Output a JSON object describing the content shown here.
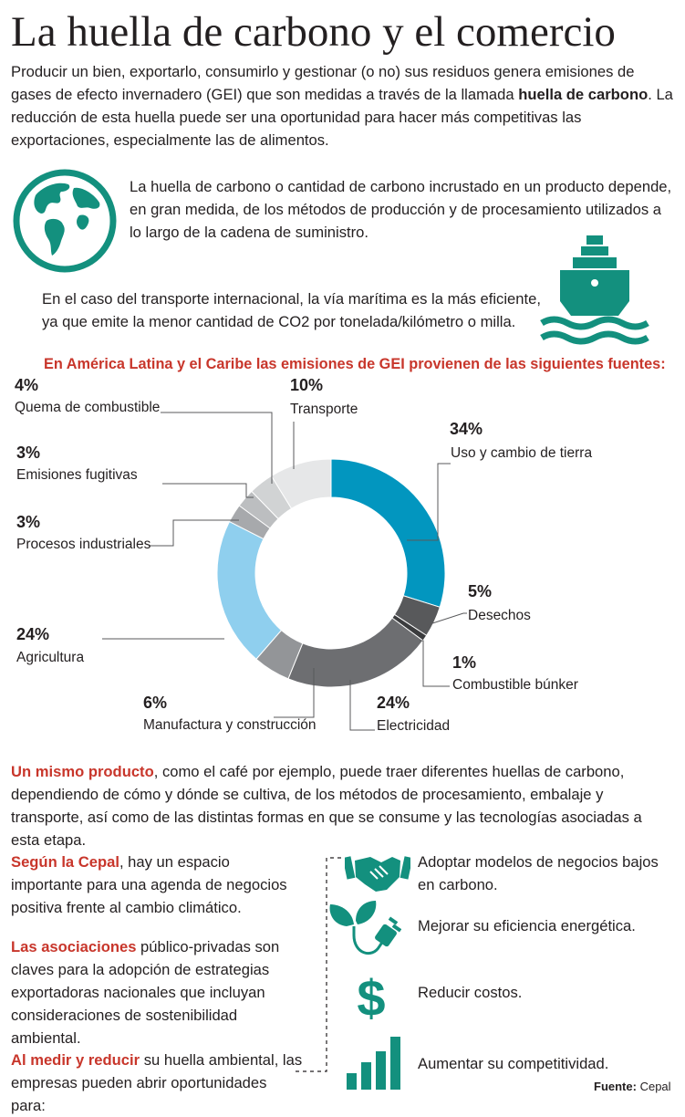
{
  "title": "La huella de carbono y el comercio",
  "intro": {
    "before": "Producir un bien, exportarlo, consumirlo y gestionar (o no) sus residuos genera emisiones de gases de efecto invernadero (GEI) que son medidas a través de la llamada ",
    "bold": "huella de carbono",
    "after": ". La reducción de esta huella puede ser una oportunidad para hacer más competitivas las exportaciones, especialmente las de alimentos."
  },
  "paragraph_globe": "La huella de carbono o cantidad de carbono incrustado en un producto depende, en gran medida, de los métodos de producción y de procesamiento utilizados a lo largo de la cadena de suministro.",
  "paragraph_ship": "En el caso del transporte internacional, la vía marítima es la más eficiente, ya que emite la menor cantidad de CO2 por tonelada/kilómetro o milla.",
  "icons": {
    "globe": "globe-icon",
    "ship": "ship-icon",
    "handshake": "handshake-icon",
    "plant_plug": "plant-plug-icon",
    "dollar": "dollar-icon",
    "bar_chart": "bar-chart-icon"
  },
  "colors": {
    "teal": "#13907e",
    "red": "#c8362b",
    "blue": "#0296bf"
  },
  "chart_data": {
    "type": "pie",
    "variant": "donut",
    "title": "En América Latina y el Caribe las emisiones de GEI provienen de las siguientes fuentes:",
    "units": "%",
    "slices": [
      {
        "label": "Uso y cambio de tierra",
        "value": 34,
        "display": "34%",
        "color": "#0296bf"
      },
      {
        "label": "Desechos",
        "value": 5,
        "display": "5%",
        "color": "#58595b"
      },
      {
        "label": "Combustible búnker",
        "value": 1,
        "display": "1%",
        "color": "#3b3c3e"
      },
      {
        "label": "Electricidad",
        "value": 24,
        "display": "24%",
        "color": "#6d6e71"
      },
      {
        "label": "Manufactura y construcción",
        "value": 6,
        "display": "6%",
        "color": "#939598"
      },
      {
        "label": "Agricultura",
        "value": 24,
        "display": "24%",
        "color": "#8fcfee"
      },
      {
        "label": "Procesos industriales",
        "value": 3,
        "display": "3%",
        "color": "#a7a9ac"
      },
      {
        "label": "Emisiones fugitivas",
        "value": 3,
        "display": "3%",
        "color": "#bcbec0"
      },
      {
        "label": "Quema de combustible",
        "value": 4,
        "display": "4%",
        "color": "#d1d3d4"
      },
      {
        "label": "Transporte",
        "value": 10,
        "display": "10%",
        "color": "#e6e7e8"
      }
    ]
  },
  "mismo_producto": {
    "lead": "Un mismo producto",
    "text": ", como el café por ejemplo, puede traer diferentes huellas de carbono, dependiendo de cómo y dónde se cultiva, de los métodos de procesamiento, embalaje y transporte, así como de las distintas formas en que se consume y las tecnologías asociadas a esta etapa."
  },
  "cepal": {
    "lead": "Según la Cepal",
    "text": ", hay un espacio importante para una agenda de negocios positiva frente al cambio climático."
  },
  "asociaciones": {
    "lead": "Las asociaciones",
    "text": " público-privadas son claves para la adopción de estrategias exportadoras nacionales que incluyan consideraciones de sostenibilidad ambiental."
  },
  "medir": {
    "lead": "Al medir y reducir",
    "text": " su huella ambiental, las empresas pueden abrir oportunidades para:"
  },
  "opportunities": [
    "Adoptar modelos de negocios bajos en carbono.",
    "Mejorar su eficiencia energética.",
    "Reducir costos.",
    "Aumentar su competitividad."
  ],
  "source": {
    "label": "Fuente:",
    "value": "Cepal"
  }
}
